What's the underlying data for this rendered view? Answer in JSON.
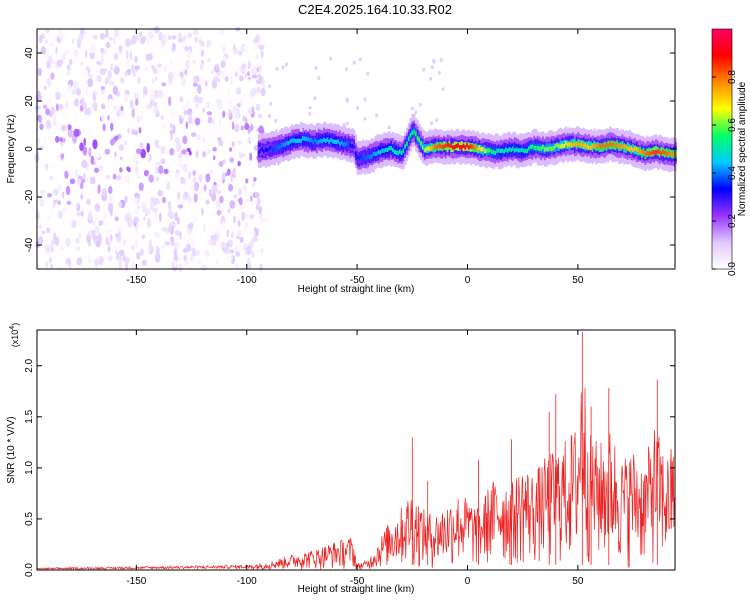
{
  "figure": {
    "title": "C2E4.2025.164.10.33.R02"
  },
  "chart_data": [
    {
      "type": "heatmap",
      "title": "C2E4.2025.164.10.33.R02",
      "xlabel": "Height of straight line (km)",
      "ylabel": "Frequency (Hz)",
      "xlim": [
        -195,
        94
      ],
      "ylim": [
        -50,
        50
      ],
      "xticks": [
        -150,
        -100,
        -50,
        0,
        50
      ],
      "xtick_labels": [
        "-150",
        "-100",
        "-50",
        "0",
        "50"
      ],
      "yticks": [
        -40,
        -20,
        0,
        20,
        40
      ],
      "ytick_labels": [
        "-40",
        "-20",
        "0",
        "20",
        "40"
      ],
      "colorbar": {
        "label": "Normalized spectral amplitude",
        "range": [
          0,
          1
        ],
        "ticks": [
          0.0,
          0.2,
          0.4,
          0.6,
          0.8
        ],
        "tick_labels": [
          "0.0",
          "0.2",
          "0.4",
          "0.6",
          "0.8"
        ],
        "colormap": [
          "#ffffff",
          "#e0c8ff",
          "#9933ff",
          "#0000ff",
          "#00ccff",
          "#00ff66",
          "#ffff00",
          "#ff8800",
          "#ff0000",
          "#ff0066"
        ]
      },
      "ridge": {
        "x": [
          -95,
          -90,
          -85,
          -80,
          -75,
          -70,
          -65,
          -60,
          -55,
          -52,
          -50,
          -45,
          -40,
          -35,
          -30,
          -25,
          -20,
          -15,
          -10,
          -5,
          0,
          5,
          10,
          15,
          20,
          25,
          30,
          35,
          40,
          45,
          50,
          55,
          60,
          65,
          70,
          75,
          80,
          85,
          90,
          94
        ],
        "y": [
          -1,
          0,
          1,
          3,
          4,
          3,
          4,
          3,
          2,
          1,
          -4,
          -3,
          -1,
          0,
          -2,
          8,
          0,
          1,
          1,
          1,
          1,
          0,
          -1,
          -1,
          0,
          -1,
          1,
          0,
          1,
          2,
          2,
          1,
          1,
          2,
          1,
          0,
          -2,
          -1,
          -2,
          -2
        ],
        "peak_amplitude": [
          0.3,
          0.35,
          0.4,
          0.45,
          0.45,
          0.4,
          0.45,
          0.45,
          0.4,
          0.3,
          0.35,
          0.4,
          0.45,
          0.5,
          0.5,
          0.55,
          0.6,
          0.8,
          0.85,
          0.9,
          0.9,
          0.7,
          0.55,
          0.5,
          0.5,
          0.5,
          0.55,
          0.6,
          0.6,
          0.7,
          0.75,
          0.7,
          0.8,
          0.8,
          0.75,
          0.7,
          0.8,
          0.85,
          0.8,
          0.75
        ]
      },
      "noise_region": {
        "x_start": -195,
        "x_end": -92,
        "peak_amplitude": 0.25
      }
    },
    {
      "type": "line",
      "title": "",
      "xlabel": "Height of straight line (km)",
      "ylabel": "SNR (10 * V/V)",
      "y_multiplier": "(x10",
      "y_multiplier_exp": "4",
      "xlim": [
        -195,
        94
      ],
      "ylim": [
        0,
        2.35
      ],
      "xticks": [
        -150,
        -100,
        -50,
        0,
        50
      ],
      "xtick_labels": [
        "-150",
        "-100",
        "-50",
        "0",
        "50"
      ],
      "yticks": [
        0.0,
        0.5,
        1.0,
        1.5,
        2.0
      ],
      "ytick_labels": [
        "0.0",
        "0.5",
        "1.0",
        "1.5",
        "2.0"
      ],
      "color": "#ee2222",
      "envelope": {
        "x": [
          -195,
          -160,
          -130,
          -100,
          -90,
          -80,
          -70,
          -60,
          -52,
          -50,
          -45,
          -40,
          -35,
          -30,
          -25,
          -20,
          -15,
          -10,
          -5,
          0,
          5,
          10,
          15,
          20,
          25,
          30,
          35,
          40,
          45,
          50,
          52,
          55,
          60,
          65,
          70,
          75,
          80,
          85,
          90,
          94
        ],
        "y": [
          0.02,
          0.03,
          0.04,
          0.05,
          0.08,
          0.15,
          0.2,
          0.28,
          0.33,
          0.06,
          0.1,
          0.3,
          0.5,
          0.62,
          0.8,
          0.6,
          0.55,
          0.65,
          0.75,
          0.72,
          0.6,
          0.85,
          0.95,
          0.85,
          1.05,
          0.95,
          1.1,
          1.2,
          1.3,
          1.45,
          2.3,
          1.35,
          1.25,
          1.4,
          1.1,
          1.2,
          1.05,
          1.45,
          1.1,
          1.3
        ]
      },
      "spikes": [
        {
          "x": -25,
          "y": 1.3
        },
        {
          "x": -18,
          "y": 0.87
        },
        {
          "x": 5,
          "y": 1.08
        },
        {
          "x": 20,
          "y": 1.28
        },
        {
          "x": 37,
          "y": 1.55
        },
        {
          "x": 40,
          "y": 1.72
        },
        {
          "x": 52,
          "y": 2.33
        },
        {
          "x": 56,
          "y": 1.6
        },
        {
          "x": 64,
          "y": 1.78
        },
        {
          "x": 86,
          "y": 1.86
        },
        {
          "x": 94,
          "y": 1.55
        }
      ]
    }
  ]
}
